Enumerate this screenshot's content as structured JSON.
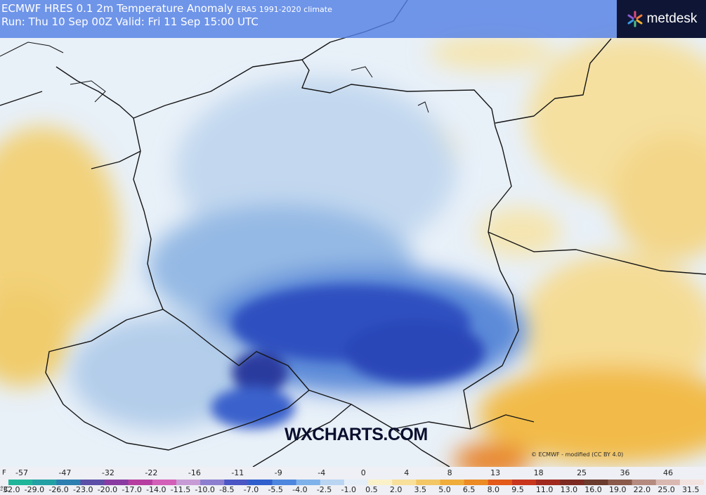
{
  "header": {
    "model": "ECMWF HRES 0.1",
    "variable": "2m Temperature Anomaly",
    "climate": "ERA5 1991-2020 climate",
    "run_line": "Run: Thu 10 Sep 00Z Valid: Fri 11 Sep 15:00 UTC"
  },
  "logo": {
    "text": "metdesk",
    "icon": "metdesk-logo-icon",
    "accent": "#e0487a"
  },
  "watermark": "WXCHARTS.COM",
  "credit": "© ECMWF - modified (CC BY 4.0)",
  "legend": {
    "fahrenheit_unit": "F",
    "celsius_unit": "°C",
    "fahrenheit_ticks": [
      "-57",
      "-47",
      "-32",
      "-22",
      "-16",
      "-11",
      "-9",
      "-4",
      "0",
      "4",
      "8",
      "13",
      "18",
      "25",
      "36",
      "46"
    ],
    "celsius_ticks": [
      "-32.0",
      "-29.0",
      "-26.0",
      "-23.0",
      "-20.0",
      "-17.0",
      "-14.0",
      "-11.5",
      "-10.0",
      "-8.5",
      "-7.0",
      "-5.5",
      "-4.0",
      "-2.5",
      "-1.0",
      "0.5",
      "2.0",
      "3.5",
      "5.0",
      "6.5",
      "8.0",
      "9.5",
      "11.0",
      "13.0",
      "16.0",
      "19.0",
      "22.0",
      "25.0",
      "31.5"
    ],
    "colors": [
      "#1fb59a",
      "#23a0a4",
      "#2c7fb0",
      "#5b4fa8",
      "#8a3ba2",
      "#b63ea0",
      "#d260b8",
      "#c79bd5",
      "#8d7fd0",
      "#4a56c4",
      "#2f5fcc",
      "#4c86de",
      "#7fb1ea",
      "#b9d5f2",
      "#e4eef8",
      "#fbf1c9",
      "#f8e09a",
      "#f3c766",
      "#f0ad3a",
      "#ec8a24",
      "#e35a1a",
      "#c8361e",
      "#a12a1f",
      "#7d2a22",
      "#6b3b2e",
      "#8a5a4a",
      "#b58b80",
      "#d9b8b1",
      "#f3e3e0"
    ]
  }
}
